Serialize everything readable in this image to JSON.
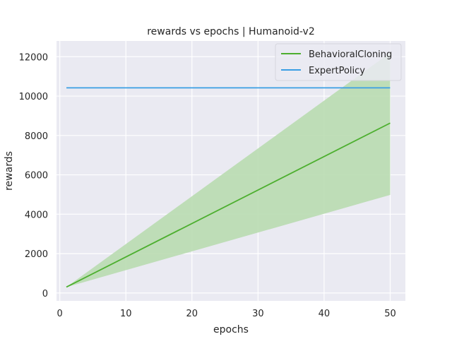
{
  "chart_data": {
    "type": "line",
    "title": "rewards vs epochs | Humanoid-v2",
    "xlabel": "epochs",
    "ylabel": "rewards",
    "xlim": [
      -0.5,
      52.3
    ],
    "ylim": [
      -400,
      12800
    ],
    "xticks": [
      0,
      10,
      20,
      30,
      40,
      50
    ],
    "yticks": [
      0,
      2000,
      4000,
      6000,
      8000,
      10000,
      12000
    ],
    "grid": true,
    "legend_position": "top-right",
    "colors": {
      "background": "#eaeaf2",
      "grid": "#ffffff",
      "behavioral": "#4daf2f",
      "behavioral_band": "#b9dbb0",
      "expert": "#3a9ee4"
    },
    "series": [
      {
        "name": "BehavioralCloning",
        "x": [
          1,
          50
        ],
        "y": [
          300,
          8630
        ],
        "lower": [
          300,
          4980
        ],
        "upper": [
          300,
          12200
        ]
      },
      {
        "name": "ExpertPolicy",
        "x": [
          1,
          50
        ],
        "y": [
          10420,
          10420
        ]
      }
    ]
  }
}
